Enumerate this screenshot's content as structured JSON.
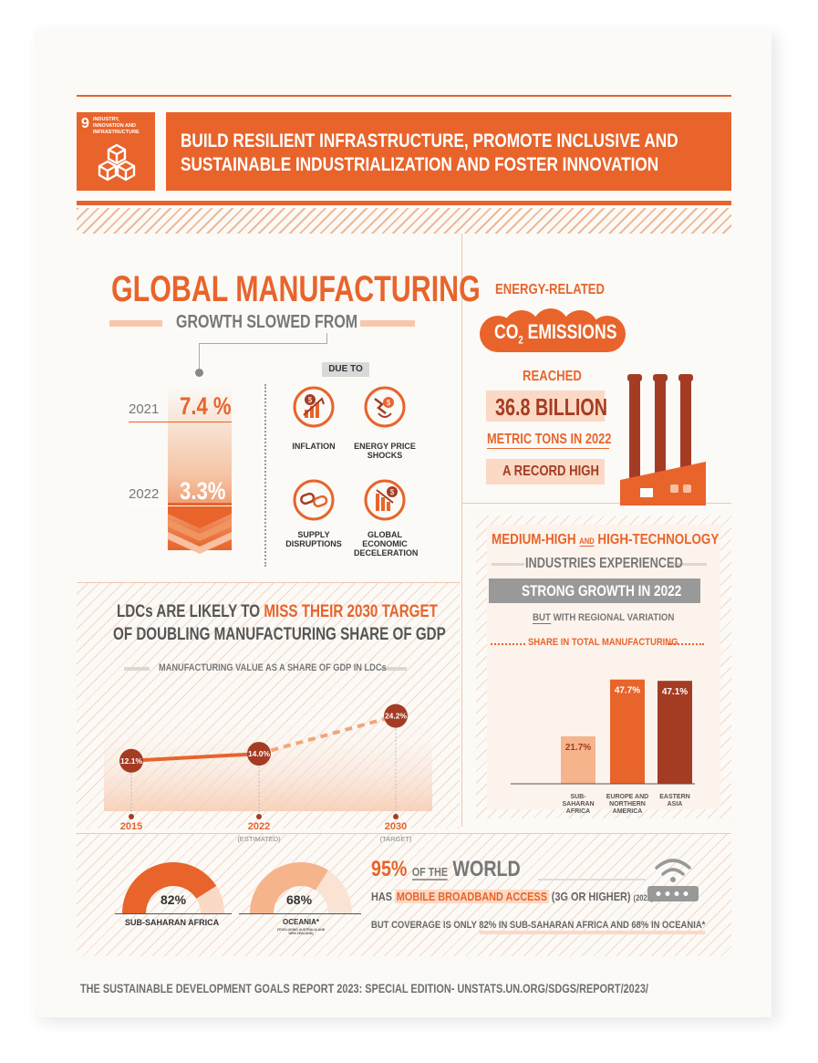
{
  "header": {
    "goal_number": "9",
    "goal_name": "INDUSTRY, INNOVATION AND INFRASTRUCTURE",
    "title_line1": "BUILD RESILIENT INFRASTRUCTURE, PROMOTE INCLUSIVE AND",
    "title_line2": "SUSTAINABLE INDUSTRIALIZATION AND FOSTER INNOVATION"
  },
  "manufacturing": {
    "title": "GLOBAL MANUFACTURING",
    "subtitle": "GROWTH SLOWED FROM",
    "year1": "2021",
    "value1": "7.4 %",
    "year2": "2022",
    "value2": "3.3%",
    "due_to": "DUE TO",
    "causes": [
      "INFLATION",
      "ENERGY PRICE SHOCKS",
      "SUPPLY DISRUPTIONS",
      "GLOBAL ECONOMIC DECELERATION"
    ]
  },
  "emissions": {
    "label_top": "ENERGY-RELATED",
    "label_co": "CO",
    "label_sub": "2",
    "label_em": " EMISSIONS",
    "reached": "REACHED",
    "value": "36.8 BILLION",
    "unit": "METRIC TONS IN 2022",
    "record": "A RECORD HIGH"
  },
  "ldc": {
    "line1_a": "LDCs ARE LIKELY TO ",
    "line1_b": "MISS THEIR 2030 TARGET",
    "line2": "OF DOUBLING MANUFACTURING SHARE OF GDP",
    "chart_title": "MANUFACTURING VALUE AS A SHARE OF GDP IN LDCs"
  },
  "tech": {
    "line1_a": "MEDIUM-HIGH ",
    "line1_and": "AND",
    "line1_b": " HIGH-TECHNOLOGY",
    "line2": "INDUSTRIES EXPERIENCED",
    "line3": "STRONG GROWTH IN 2022",
    "line4_but": "BUT",
    "line4": " WITH REGIONAL VARIATION",
    "chart_title": "SHARE IN TOTAL MANUFACTURING"
  },
  "broadband": {
    "pct": "95%",
    "of_the": "OF THE",
    "world": "WORLD",
    "has": "HAS",
    "access": "MOBILE BROADBAND ACCESS",
    "tech": "(3G OR HIGHER)",
    "year": "(2022)",
    "coverage_a": "BUT COVERAGE IS ONLY ",
    "coverage_b": "82% IN SUB-SAHARAN AFRICA AND 68% IN OCEANIA*",
    "gauge1_value": "82%",
    "gauge1_label": "SUB-SAHARAN AFRICA",
    "gauge1_fraction": 0.82,
    "gauge2_value": "68%",
    "gauge2_label": "OCEANIA*",
    "gauge2_note": "(*EXCLUDING AUSTRALIA AND NEW ZEALAND)",
    "gauge2_fraction": 0.68
  },
  "footer": {
    "source": "THE SUSTAINABLE DEVELOPMENT GOALS REPORT 2023: SPECIAL EDITION- UNSTATS.UN.ORG/SDGS/REPORT/2023/"
  },
  "chart_data": [
    {
      "type": "line",
      "title": "MANUFACTURING VALUE AS A SHARE OF GDP IN LDCs",
      "x": [
        "2015",
        "2022",
        "2030"
      ],
      "x_notes": [
        "",
        "(ESTIMATED)",
        "(TARGET)"
      ],
      "values": [
        12.1,
        14.0,
        24.2
      ],
      "labels": [
        "12.1%",
        "14.0%",
        "24.2%"
      ],
      "dashed_from_index": 1,
      "ylim": [
        0,
        30
      ]
    },
    {
      "type": "bar",
      "title": "SHARE IN TOTAL MANUFACTURING",
      "categories": [
        "SUB-SAHARAN AFRICA",
        "EUROPE AND NORTHERN AMERICA",
        "EASTERN ASIA"
      ],
      "values": [
        21.7,
        47.7,
        47.1
      ],
      "labels": [
        "21.7%",
        "47.7%",
        "47.1%"
      ],
      "colors": [
        "#f5b48c",
        "#e8642b",
        "#a43c23"
      ],
      "ylim": [
        0,
        55
      ]
    }
  ]
}
